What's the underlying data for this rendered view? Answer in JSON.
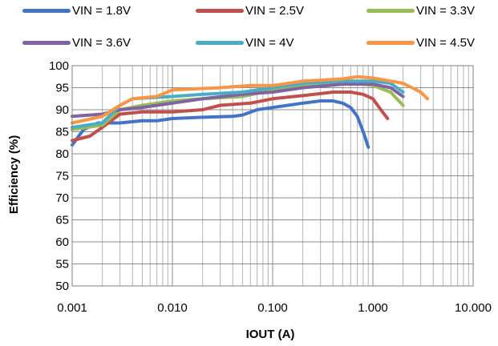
{
  "chart_data": {
    "type": "line",
    "title": "",
    "xlabel": "IOUT (A)",
    "ylabel": "Efficiency (%)",
    "x_scale": "log",
    "xlim": [
      0.001,
      10
    ],
    "ylim": [
      50,
      100
    ],
    "x_ticks": [
      0.001,
      0.01,
      0.1,
      1,
      10
    ],
    "x_tick_labels": [
      "0.001",
      "0.010",
      "0.100",
      "1.000",
      "10.000"
    ],
    "y_ticks": [
      50,
      55,
      60,
      65,
      70,
      75,
      80,
      85,
      90,
      95,
      100
    ],
    "y_tick_labels": [
      "50",
      "55",
      "60",
      "65",
      "70",
      "75",
      "80",
      "85",
      "90",
      "95",
      "100"
    ],
    "grid": true,
    "legend_position": "top",
    "series": [
      {
        "name": "VIN = 1.8V",
        "color": "#4472C4",
        "points": [
          [
            0.001,
            82
          ],
          [
            0.0013,
            85.5
          ],
          [
            0.0018,
            87
          ],
          [
            0.003,
            87
          ],
          [
            0.005,
            87.5
          ],
          [
            0.007,
            87.5
          ],
          [
            0.01,
            88
          ],
          [
            0.02,
            88.3
          ],
          [
            0.04,
            88.5
          ],
          [
            0.05,
            88.8
          ],
          [
            0.07,
            90
          ],
          [
            0.1,
            90.5
          ],
          [
            0.2,
            91.5
          ],
          [
            0.3,
            92
          ],
          [
            0.4,
            92
          ],
          [
            0.5,
            91.5
          ],
          [
            0.6,
            90.5
          ],
          [
            0.7,
            88.5
          ],
          [
            0.8,
            85
          ],
          [
            0.9,
            81.5
          ]
        ]
      },
      {
        "name": "VIN = 2.5V",
        "color": "#C0504D",
        "points": [
          [
            0.001,
            83
          ],
          [
            0.0015,
            84
          ],
          [
            0.002,
            86
          ],
          [
            0.003,
            89
          ],
          [
            0.005,
            89.5
          ],
          [
            0.01,
            89.5
          ],
          [
            0.02,
            90
          ],
          [
            0.03,
            91
          ],
          [
            0.06,
            91.5
          ],
          [
            0.1,
            92.5
          ],
          [
            0.2,
            93.2
          ],
          [
            0.4,
            94
          ],
          [
            0.6,
            94
          ],
          [
            0.8,
            93.5
          ],
          [
            1.0,
            92.5
          ],
          [
            1.2,
            90
          ],
          [
            1.4,
            88
          ]
        ]
      },
      {
        "name": "VIN = 3.3V",
        "color": "#9BBB59",
        "points": [
          [
            0.001,
            85.5
          ],
          [
            0.002,
            86.5
          ],
          [
            0.003,
            90
          ],
          [
            0.005,
            91
          ],
          [
            0.01,
            92
          ],
          [
            0.02,
            92.5
          ],
          [
            0.05,
            93
          ],
          [
            0.1,
            94.5
          ],
          [
            0.2,
            95.5
          ],
          [
            0.4,
            96
          ],
          [
            0.7,
            96
          ],
          [
            1.0,
            95.5
          ],
          [
            1.5,
            94
          ],
          [
            2.0,
            91
          ]
        ]
      },
      {
        "name": "VIN = 3.6V",
        "color": "#8064A2",
        "points": [
          [
            0.001,
            88.5
          ],
          [
            0.002,
            89
          ],
          [
            0.003,
            90
          ],
          [
            0.005,
            90.5
          ],
          [
            0.01,
            91.5
          ],
          [
            0.02,
            92.5
          ],
          [
            0.05,
            93.5
          ],
          [
            0.1,
            94
          ],
          [
            0.2,
            95
          ],
          [
            0.5,
            95.8
          ],
          [
            1.0,
            95.8
          ],
          [
            1.5,
            95
          ],
          [
            2.0,
            93
          ]
        ]
      },
      {
        "name": "VIN = 4V",
        "color": "#4BACC6",
        "points": [
          [
            0.001,
            86
          ],
          [
            0.002,
            87
          ],
          [
            0.003,
            91
          ],
          [
            0.004,
            92.5
          ],
          [
            0.01,
            93
          ],
          [
            0.02,
            93.5
          ],
          [
            0.05,
            94
          ],
          [
            0.1,
            95
          ],
          [
            0.2,
            96
          ],
          [
            0.5,
            96.5
          ],
          [
            1.0,
            96.5
          ],
          [
            1.5,
            96
          ],
          [
            2.0,
            94
          ]
        ]
      },
      {
        "name": "VIN = 4.5V",
        "color": "#F79646",
        "points": [
          [
            0.001,
            87
          ],
          [
            0.002,
            88.5
          ],
          [
            0.003,
            91
          ],
          [
            0.004,
            92.5
          ],
          [
            0.007,
            93
          ],
          [
            0.01,
            94.5
          ],
          [
            0.03,
            95
          ],
          [
            0.06,
            95.5
          ],
          [
            0.1,
            95.5
          ],
          [
            0.2,
            96.5
          ],
          [
            0.5,
            97
          ],
          [
            0.7,
            97.5
          ],
          [
            1.0,
            97.2
          ],
          [
            2.0,
            96
          ],
          [
            3.0,
            94
          ],
          [
            3.5,
            92.5
          ]
        ]
      }
    ]
  }
}
